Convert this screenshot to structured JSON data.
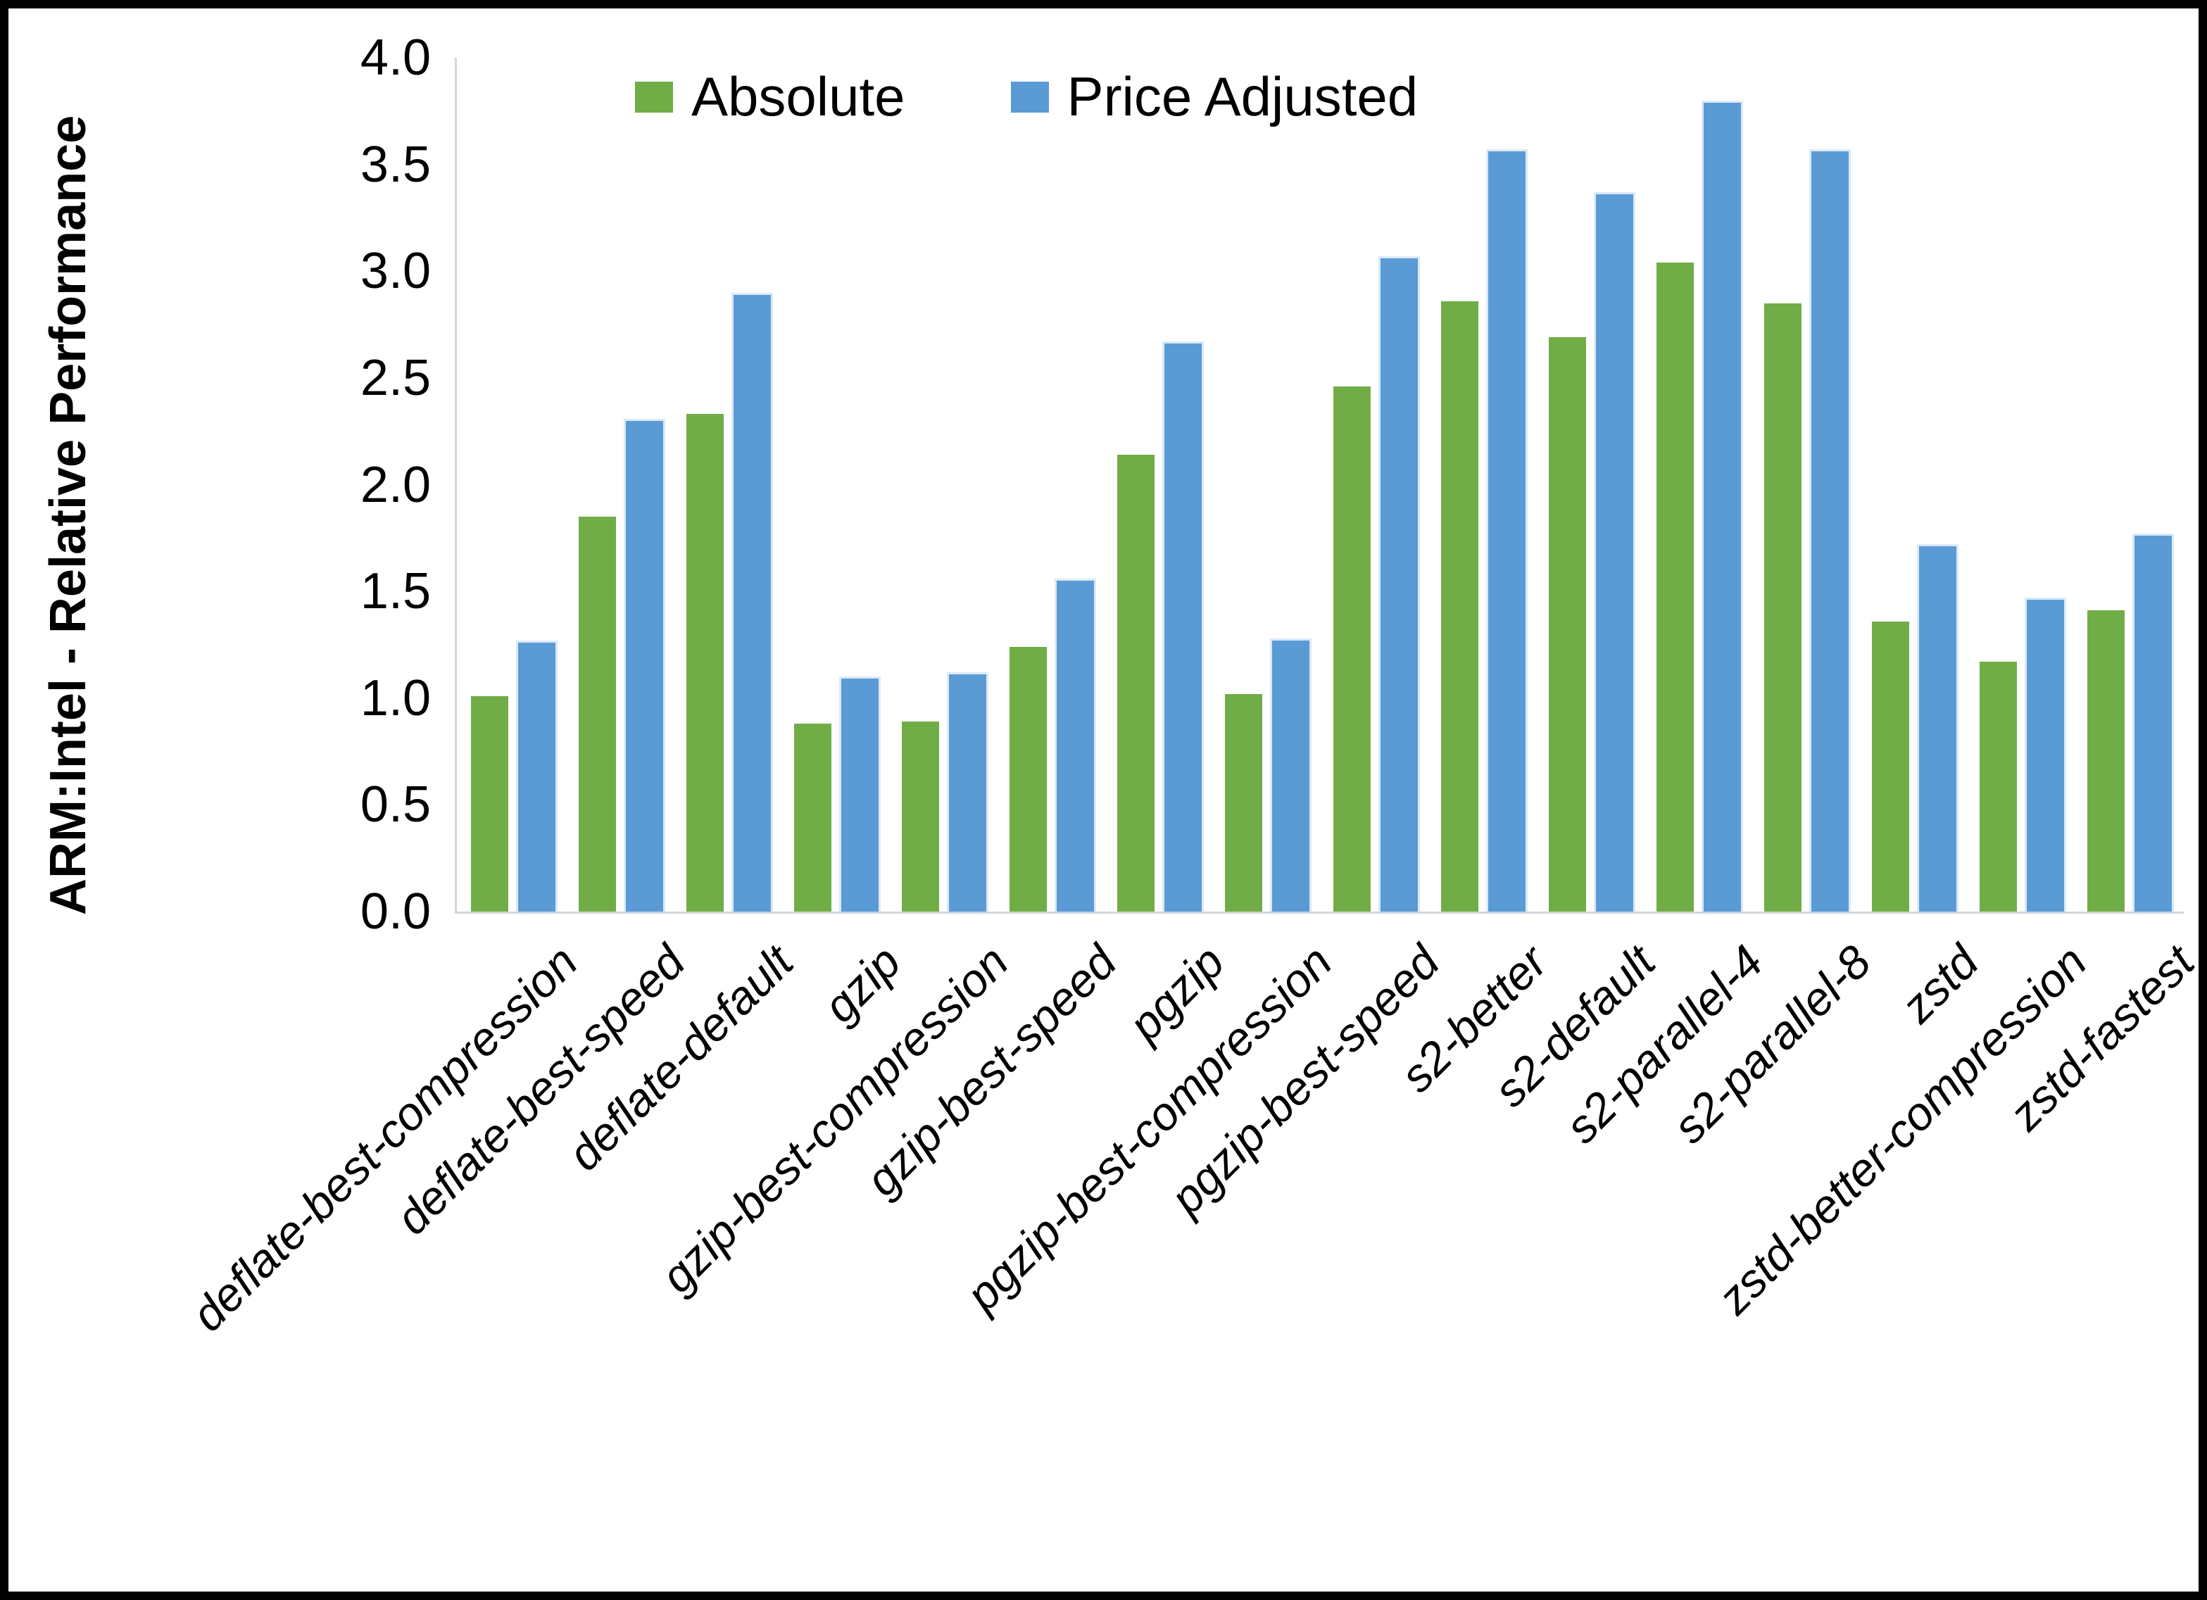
{
  "chart_data": {
    "type": "bar",
    "title": "",
    "categories": [
      "deflate-best-compression",
      "deflate-best-speed",
      "deflate-default",
      "gzip",
      "gzip-best-compression",
      "gzip-best-speed",
      "pgzip",
      "pgzip-best-compression",
      "pgzip-best-speed",
      "s2-better",
      "s2-default",
      "s2-parallel-4",
      "s2-parallel-8",
      "zstd",
      "zstd-better-compression",
      "zstd-fastest"
    ],
    "series": [
      {
        "name": "Absolute",
        "color": "#70AD47",
        "values": [
          1.01,
          1.85,
          2.33,
          0.88,
          0.89,
          1.24,
          2.14,
          1.02,
          2.46,
          2.86,
          2.69,
          3.04,
          2.85,
          1.36,
          1.17,
          1.41
        ]
      },
      {
        "name": "Price Adjusted",
        "color": "#5B9BD5",
        "values": [
          1.26,
          2.3,
          2.89,
          1.09,
          1.11,
          1.55,
          2.66,
          1.27,
          3.06,
          3.56,
          3.36,
          3.79,
          3.56,
          1.71,
          1.46,
          1.76
        ]
      }
    ],
    "xlabel": "",
    "ylabel": "ARM:Intel - Relative Performance",
    "ylim": [
      0.0,
      4.0
    ],
    "ytick_labels": [
      "4.0",
      "3.5",
      "3.0",
      "2.5",
      "2.0",
      "1.5",
      "1.0",
      "0.5",
      "0.0"
    ],
    "grid": false,
    "legend_position": "top-center"
  }
}
